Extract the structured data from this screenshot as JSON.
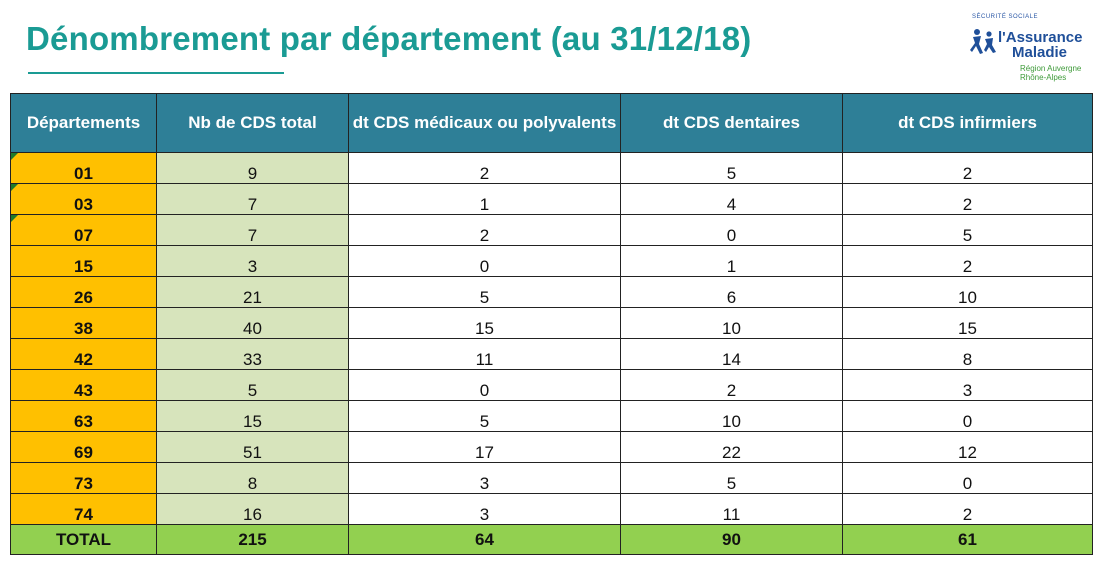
{
  "title": "Dénombrement par département (au 31/12/18)",
  "colors": {
    "title": "#1a9b94",
    "header_bg": "#2e7f97",
    "department_bg": "#ffc000",
    "total_column_bg": "#d7e4bc",
    "total_row_bg": "#92d050"
  },
  "logo": {
    "arc_text": "SÉCURITÉ SOCIALE",
    "line1": "l'Assurance",
    "line2": "Maladie",
    "region1": "Région Auvergne",
    "region2": "Rhône-Alpes"
  },
  "table": {
    "headers": [
      "Départements",
      "Nb de CDS total",
      "dt CDS médicaux ou polyvalents",
      "dt CDS  dentaires",
      "dt CDS infirmiers"
    ],
    "rows": [
      [
        "01",
        "9",
        "2",
        "5",
        "2"
      ],
      [
        "03",
        "7",
        "1",
        "4",
        "2"
      ],
      [
        "07",
        "7",
        "2",
        "0",
        "5"
      ],
      [
        "15",
        "3",
        "0",
        "1",
        "2"
      ],
      [
        "26",
        "21",
        "5",
        "6",
        "10"
      ],
      [
        "38",
        "40",
        "15",
        "10",
        "15"
      ],
      [
        "42",
        "33",
        "11",
        "14",
        "8"
      ],
      [
        "43",
        "5",
        "0",
        "2",
        "3"
      ],
      [
        "63",
        "15",
        "5",
        "10",
        "0"
      ],
      [
        "69",
        "51",
        "17",
        "22",
        "12"
      ],
      [
        "73",
        "8",
        "3",
        "5",
        "0"
      ],
      [
        "74",
        "16",
        "3",
        "11",
        "2"
      ]
    ],
    "total": [
      "TOTAL",
      "215",
      "64",
      "90",
      "61"
    ]
  }
}
